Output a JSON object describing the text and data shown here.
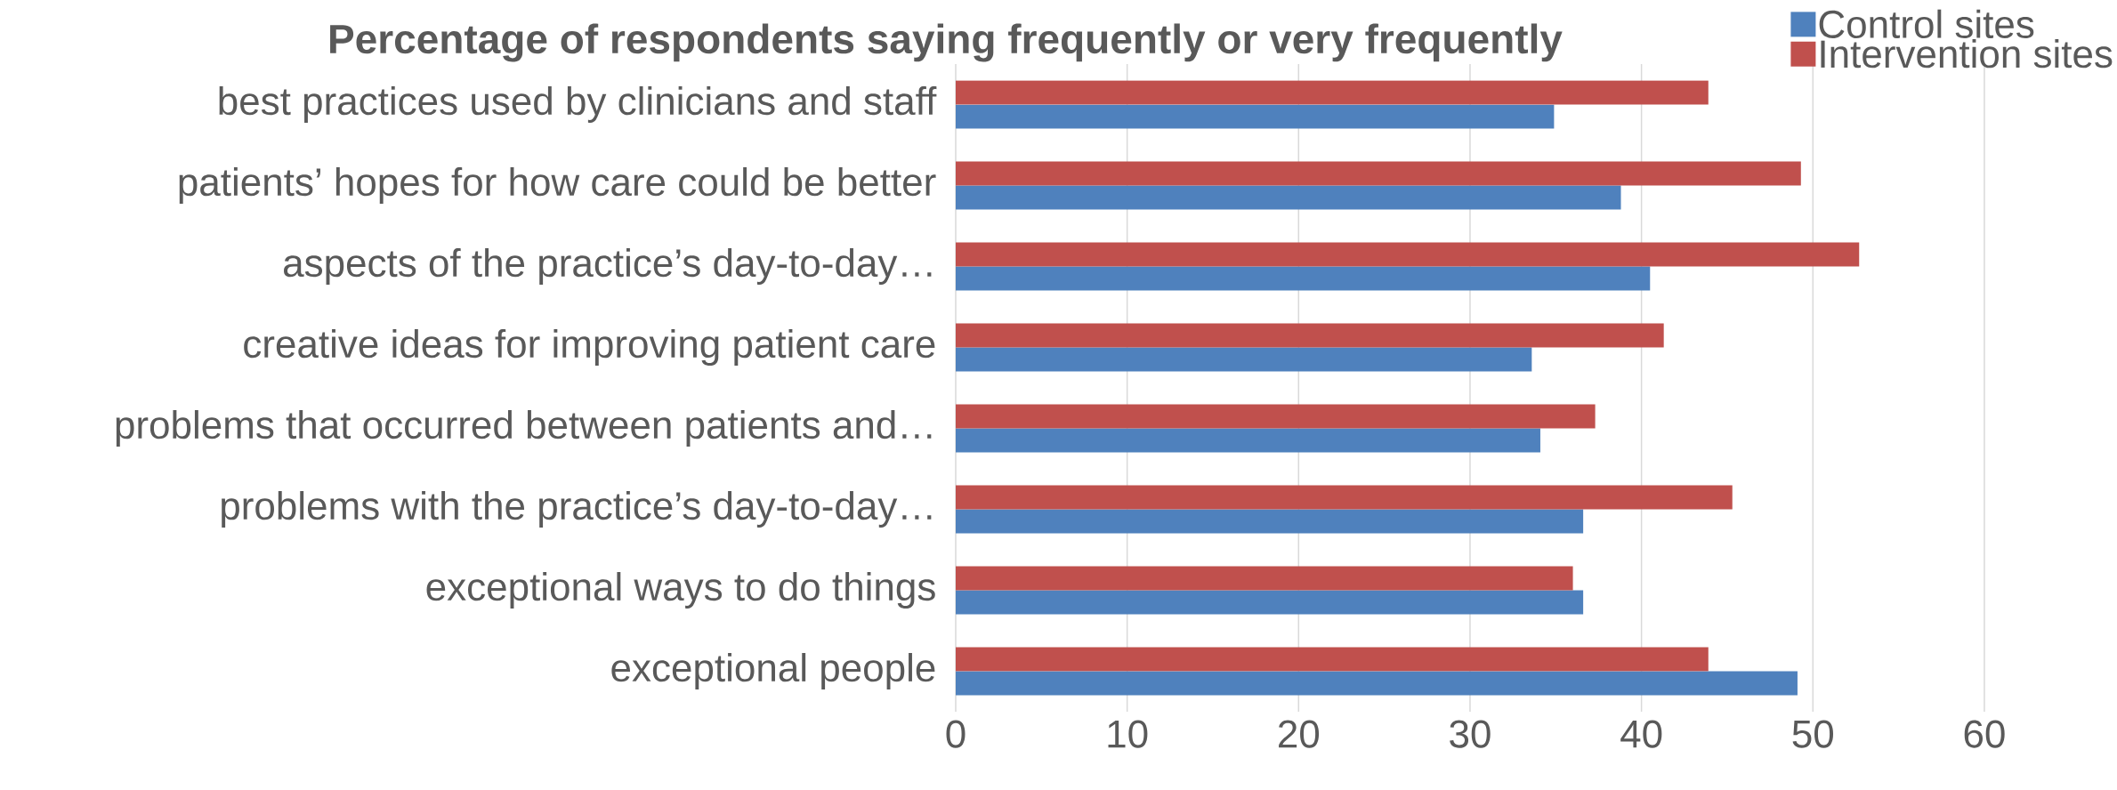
{
  "chart_data": {
    "type": "bar",
    "orientation": "horizontal",
    "title": "Percentage of respondents saying frequently or very frequently",
    "categories": [
      "best practices used by clinicians and staff",
      "patients’ hopes for how care could be better",
      "aspects of the practice’s day-to-day…",
      "creative ideas for improving patient care",
      "problems that occurred between patients and…",
      "problems with the practice’s day-to-day…",
      "exceptional ways to do things",
      "exceptional people"
    ],
    "series": [
      {
        "name": "Control sites",
        "color": "#4f81bd",
        "values": [
          34.9,
          38.8,
          40.5,
          33.6,
          34.1,
          36.6,
          36.6,
          49.1
        ]
      },
      {
        "name": "Intervention sites",
        "color": "#c0504d",
        "values": [
          43.9,
          49.3,
          52.7,
          41.3,
          37.3,
          45.3,
          36.0,
          43.9
        ]
      }
    ],
    "xlim": [
      0,
      60
    ],
    "xticks": [
      0,
      10,
      20,
      30,
      40,
      50,
      60
    ],
    "grid": "x",
    "legend": "top right"
  }
}
